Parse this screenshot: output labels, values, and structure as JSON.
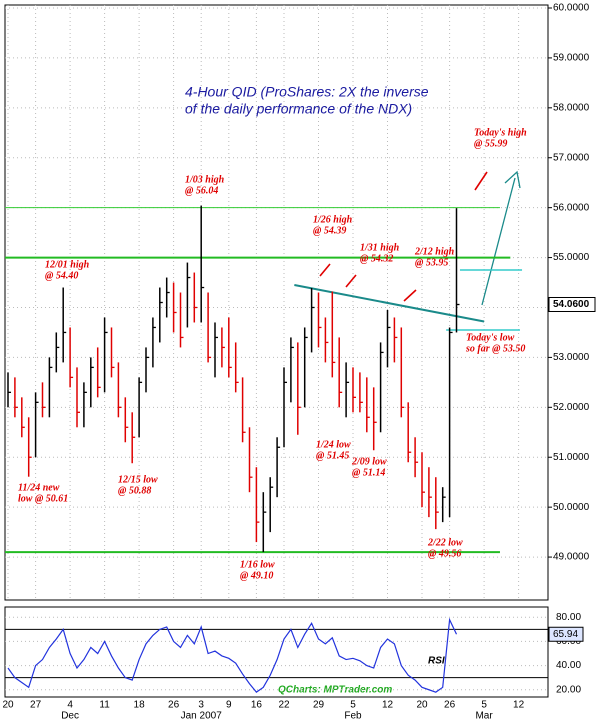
{
  "chart_data": {
    "type": "ohlc",
    "title_lines": [
      "4-Hour QID (ProShares: 2X the inverse",
      "of the daily performance of the NDX)"
    ],
    "categories": [
      "20",
      null,
      null,
      null,
      "27",
      null,
      null,
      null,
      null,
      "4",
      null,
      null,
      null,
      null,
      "11",
      null,
      null,
      null,
      null,
      "18",
      null,
      null,
      null,
      null,
      "26",
      null,
      null,
      null,
      "3",
      null,
      null,
      null,
      "9",
      null,
      null,
      null,
      "16",
      null,
      null,
      null,
      "22",
      null,
      null,
      null,
      null,
      "29",
      null,
      null,
      null,
      null,
      "5",
      null,
      null,
      null,
      null,
      "12",
      null,
      null,
      null,
      null,
      "20",
      null,
      null,
      null,
      "26",
      null,
      null,
      null,
      null,
      "5",
      null,
      null,
      null,
      null,
      "12",
      null,
      null
    ],
    "months": [
      null,
      null,
      null,
      null,
      null,
      null,
      null,
      null,
      null,
      "Dec",
      null,
      null,
      null,
      null,
      null,
      null,
      null,
      null,
      null,
      null,
      null,
      null,
      null,
      null,
      null,
      null,
      null,
      null,
      "Jan 2007",
      null,
      null,
      null,
      null,
      null,
      null,
      null,
      null,
      null,
      null,
      null,
      null,
      null,
      null,
      null,
      null,
      null,
      null,
      null,
      null,
      null,
      "Feb",
      null,
      null,
      null,
      null,
      null,
      null,
      null,
      null,
      null,
      null,
      null,
      null,
      null,
      null,
      null,
      null,
      null,
      null,
      "Mar",
      null,
      null,
      null,
      null,
      null,
      null,
      null
    ],
    "high": [
      52.7,
      52.6,
      52.2,
      51.8,
      52.3,
      52.5,
      53.0,
      53.5,
      54.4,
      53.6,
      52.8,
      52.5,
      53.0,
      53.2,
      53.8,
      53.6,
      52.9,
      52.2,
      51.9,
      52.6,
      53.2,
      53.8,
      54.4,
      54.6,
      54.5,
      54.3,
      54.9,
      54.7,
      56.04,
      54.3,
      53.7,
      53.6,
      53.8,
      53.3,
      52.6,
      51.6,
      50.8,
      50.3,
      50.6,
      51.4,
      52.8,
      53.4,
      53.3,
      53.6,
      54.39,
      54.3,
      53.8,
      54.32,
      53.4,
      52.9,
      52.8,
      52.7,
      52.6,
      52.4,
      53.3,
      53.95,
      53.8,
      53.6,
      52.1,
      51.4,
      51.1,
      50.8,
      50.6,
      50.4,
      53.6,
      55.99,
      null,
      null,
      null,
      null,
      null,
      null,
      null,
      null,
      null,
      null,
      null
    ],
    "low": [
      52.0,
      51.8,
      51.4,
      50.61,
      51.0,
      51.8,
      51.8,
      52.7,
      52.9,
      52.4,
      51.6,
      51.6,
      52.0,
      52.2,
      52.3,
      52.6,
      51.8,
      51.3,
      50.88,
      51.4,
      52.3,
      52.8,
      53.3,
      53.8,
      53.5,
      53.2,
      53.6,
      53.7,
      53.7,
      52.9,
      52.6,
      52.8,
      52.6,
      52.3,
      51.3,
      50.3,
      49.3,
      49.1,
      49.5,
      50.2,
      51.2,
      52.1,
      51.45,
      52.0,
      53.1,
      53.2,
      52.9,
      52.6,
      52.0,
      51.8,
      51.9,
      51.9,
      51.5,
      51.14,
      51.5,
      52.8,
      52.9,
      51.8,
      50.9,
      50.6,
      50.0,
      49.8,
      49.56,
      49.7,
      49.8,
      53.5,
      null,
      null,
      null,
      null,
      null,
      null,
      null,
      null,
      null,
      null,
      null
    ],
    "close": [
      52.3,
      52.0,
      51.6,
      51.0,
      52.1,
      52.0,
      52.8,
      53.2,
      53.5,
      52.6,
      51.9,
      52.3,
      52.8,
      52.4,
      53.5,
      52.8,
      52.0,
      51.6,
      51.4,
      52.5,
      53.0,
      53.6,
      54.1,
      54.3,
      53.9,
      53.4,
      54.6,
      54.0,
      54.4,
      53.0,
      53.4,
      53.2,
      52.8,
      52.5,
      51.5,
      50.6,
      49.7,
      49.9,
      50.4,
      51.2,
      52.5,
      53.2,
      52.0,
      53.4,
      54.0,
      53.6,
      53.3,
      52.9,
      52.3,
      52.5,
      52.2,
      52.1,
      51.8,
      51.7,
      53.1,
      53.6,
      53.4,
      52.0,
      51.1,
      50.9,
      50.3,
      50.2,
      49.9,
      50.2,
      53.5,
      54.06,
      null,
      null,
      null,
      null,
      null,
      null,
      null,
      null,
      null,
      null,
      null
    ],
    "up_color": "#000000",
    "down_color": "#e00000",
    "ylim": [
      48.14,
      60.06
    ],
    "yticks": [
      {
        "value": 49,
        "label": "49.0000"
      },
      {
        "value": 50,
        "label": "50.0000"
      },
      {
        "value": 51,
        "label": "51.0000"
      },
      {
        "value": 52,
        "label": "52.0000"
      },
      {
        "value": 53,
        "label": "53.0000"
      },
      {
        "value": 54,
        "label": "54.0000"
      },
      {
        "value": 55,
        "label": "55.0000"
      },
      {
        "value": 56,
        "label": "56.0000"
      },
      {
        "value": 57,
        "label": "57.0000"
      },
      {
        "value": 58,
        "label": "58.0000"
      },
      {
        "value": 59,
        "label": "59.0000"
      },
      {
        "value": 60,
        "label": "60.0000"
      }
    ],
    "price_marker": {
      "value": 54.06,
      "label": "54.0600"
    },
    "grid": true,
    "levels": [
      {
        "value": 56.0,
        "color": "#33cc33"
      },
      {
        "value": 55.0,
        "color": "#22bb22"
      },
      {
        "value": 49.1,
        "color": "#22bb22"
      }
    ],
    "trendline": {
      "values": [
        54.45,
        53.72
      ],
      "color": "#1a8a8a"
    },
    "marks": {
      "values": [
        54.75,
        53.55
      ],
      "color": "#33cccc"
    },
    "annotations": [
      {
        "lines": [
          "1/03 high",
          "@ 56.04"
        ]
      },
      {
        "lines": [
          "12/01 high",
          "@ 54.40"
        ]
      },
      {
        "lines": [
          "1/26 high",
          "@ 54.39"
        ]
      },
      {
        "lines": [
          "1/31 high",
          "@ 54.32"
        ]
      },
      {
        "lines": [
          "2/12 high",
          "@ 53.95"
        ]
      },
      {
        "lines": [
          "Today's high",
          "@ 55.99"
        ]
      },
      {
        "lines": [
          "Today's low",
          "so far @ 53.50"
        ]
      },
      {
        "lines": [
          "11/24 new",
          "low @ 50.61"
        ]
      },
      {
        "lines": [
          "12/15 low",
          "@ 50.88"
        ]
      },
      {
        "lines": [
          "1/24 low",
          "@ 51.45"
        ]
      },
      {
        "lines": [
          "2/09 low",
          "@ 51.14"
        ]
      },
      {
        "lines": [
          "1/16 low",
          "@ 49.10"
        ]
      },
      {
        "lines": [
          "2/22 low",
          "@ 49.56"
        ]
      }
    ],
    "rsi": {
      "label": "RSI",
      "color": "#2233dd",
      "values": [
        38,
        30,
        26,
        22,
        40,
        45,
        55,
        62,
        70,
        50,
        38,
        45,
        55,
        50,
        60,
        48,
        38,
        30,
        28,
        45,
        58,
        65,
        70,
        72,
        60,
        55,
        65,
        58,
        72,
        50,
        52,
        48,
        46,
        42,
        33,
        25,
        18,
        22,
        32,
        45,
        62,
        70,
        55,
        66,
        75,
        62,
        58,
        63,
        48,
        45,
        46,
        44,
        40,
        38,
        55,
        62,
        58,
        40,
        32,
        28,
        22,
        20,
        18,
        22,
        78,
        65.94,
        null,
        null,
        null,
        null,
        null,
        null,
        null,
        null,
        null,
        null,
        null
      ],
      "ylim": [
        14,
        88.5
      ],
      "yticks": [
        {
          "value": 20,
          "label": "20.00"
        },
        {
          "value": 40,
          "label": "40.00"
        },
        {
          "value": 60,
          "label": "60.00"
        },
        {
          "value": 80,
          "label": "80.00"
        }
      ],
      "levels": [
        30,
        70
      ],
      "marker": {
        "value": 65.94,
        "label": "65.94"
      }
    },
    "watermark": "QCharts: MPTrader.com"
  }
}
